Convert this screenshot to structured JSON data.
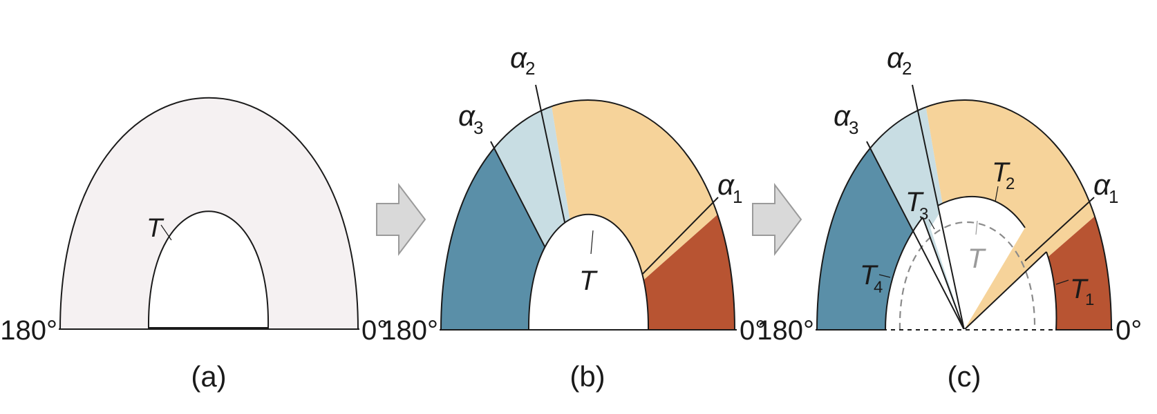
{
  "colors": {
    "background_fill": "#f5f1f2",
    "segment_dark_blue": "#5a8fa8",
    "segment_light_blue": "#c8dde3",
    "segment_tan": "#f6d39a",
    "segment_red": "#b85432",
    "arrow_fill": "#d9d9d9",
    "arrow_stroke": "#9a9a9a"
  },
  "panels": [
    {
      "caption": "(a)",
      "angle_left": "180°",
      "angle_right": "0°",
      "inner_label": "T"
    },
    {
      "caption": "(b)",
      "angle_left": "180°",
      "angle_right": "0°",
      "inner_label": "T",
      "alpha_labels": [
        {
          "base": "α",
          "sub": "2"
        },
        {
          "base": "α",
          "sub": "3"
        },
        {
          "base": "α",
          "sub": "1"
        }
      ]
    },
    {
      "caption": "(c)",
      "angle_left": "180°",
      "angle_right": "0°",
      "inner_label": "T",
      "alpha_labels": [
        {
          "base": "α",
          "sub": "2"
        },
        {
          "base": "α",
          "sub": "3"
        },
        {
          "base": "α",
          "sub": "1"
        }
      ],
      "t_labels": [
        {
          "base": "T",
          "sub": "2"
        },
        {
          "base": "T",
          "sub": "3"
        },
        {
          "base": "T",
          "sub": "4"
        },
        {
          "base": "T",
          "sub": "1"
        }
      ]
    }
  ],
  "arrows": [
    {
      "icon": "right-arrow-icon"
    },
    {
      "icon": "right-arrow-icon"
    }
  ]
}
